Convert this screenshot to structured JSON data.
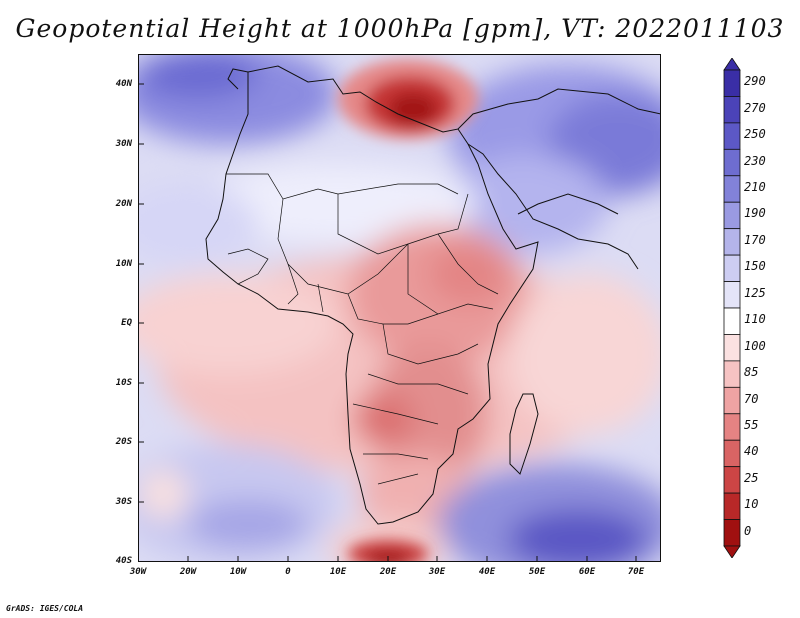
{
  "title": "Geopotential Height at 1000hPa [gpm], VT: 2022011103",
  "credit": "GrADS: IGES/COLA",
  "map": {
    "region": "Africa and surrounding oceans",
    "variable": "Geopotential Height",
    "level": "1000hPa",
    "units": "gpm",
    "valid_time": "2022011103",
    "lon_range": [
      -30,
      75
    ],
    "lat_range": [
      -40,
      45
    ],
    "lat_ticks": [
      {
        "value": 40,
        "label": "40N"
      },
      {
        "value": 30,
        "label": "30N"
      },
      {
        "value": 20,
        "label": "20N"
      },
      {
        "value": 10,
        "label": "10N"
      },
      {
        "value": 0,
        "label": "EQ"
      },
      {
        "value": -10,
        "label": "10S"
      },
      {
        "value": -20,
        "label": "20S"
      },
      {
        "value": -30,
        "label": "30S"
      },
      {
        "value": -40,
        "label": "40S"
      }
    ],
    "lon_ticks": [
      {
        "value": -30,
        "label": "30W"
      },
      {
        "value": -20,
        "label": "20W"
      },
      {
        "value": -10,
        "label": "10W"
      },
      {
        "value": 0,
        "label": "0"
      },
      {
        "value": 10,
        "label": "10E"
      },
      {
        "value": 20,
        "label": "20E"
      },
      {
        "value": 30,
        "label": "30E"
      },
      {
        "value": 40,
        "label": "40E"
      },
      {
        "value": 50,
        "label": "50E"
      },
      {
        "value": 60,
        "label": "60E"
      },
      {
        "value": 70,
        "label": "70E"
      }
    ]
  },
  "colorbar": {
    "levels": [
      "290",
      "270",
      "250",
      "230",
      "210",
      "190",
      "170",
      "150",
      "125",
      "110",
      "100",
      "85",
      "70",
      "55",
      "40",
      "25",
      "10",
      "0"
    ],
    "colors": [
      "#3a2ea6",
      "#4b43b8",
      "#5c58c6",
      "#6e6dd0",
      "#8282d9",
      "#9a9ae2",
      "#b4b4ea",
      "#cdcdf2",
      "#e4e4f8",
      "#ffffff",
      "#fbe1e1",
      "#f6c3c3",
      "#efa3a3",
      "#e58383",
      "#d96464",
      "#cc4545",
      "#b82828",
      "#a01010"
    ]
  }
}
